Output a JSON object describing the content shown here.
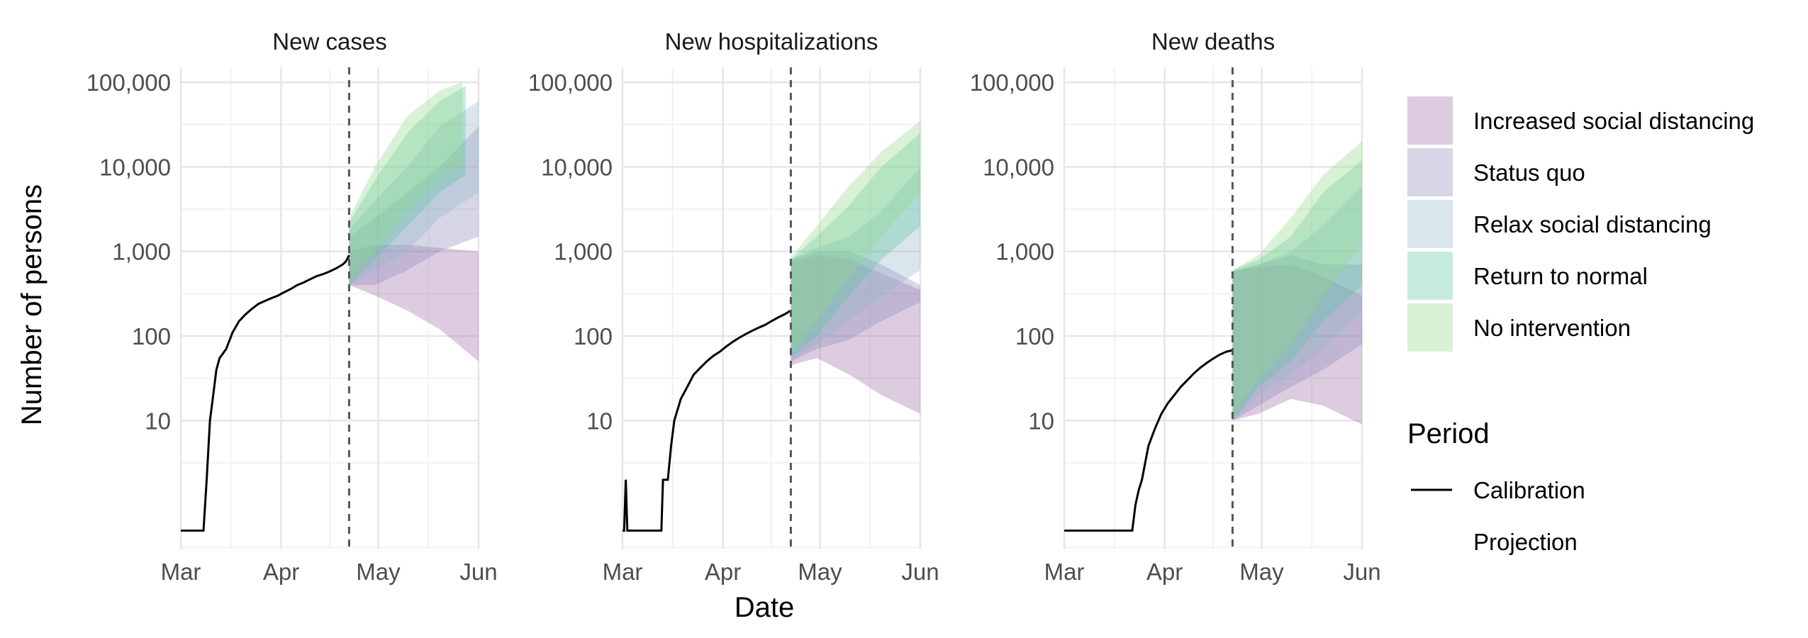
{
  "chart_data": {
    "type": "area",
    "x_axis_title": "Date",
    "y_axis_title": "Number of persons",
    "y_scale": "log10",
    "y_ticks": [
      {
        "value": 10,
        "label": "10"
      },
      {
        "value": 100,
        "label": "100"
      },
      {
        "value": 1000,
        "label": "1,000"
      },
      {
        "value": 10000,
        "label": "10,000"
      },
      {
        "value": 100000,
        "label": "100,000"
      }
    ],
    "ylim": [
      0.3,
      150000
    ],
    "x_ticks": [
      {
        "day": 0,
        "label": "Mar"
      },
      {
        "day": 31,
        "label": "Apr"
      },
      {
        "day": 61,
        "label": "May"
      },
      {
        "day": 92,
        "label": "Jun"
      }
    ],
    "xlim_days_from_mar1": [
      0,
      92
    ],
    "projection_start_day": 52,
    "grid": true,
    "legend": {
      "scenario_title": "",
      "scenarios": [
        {
          "label": "Increased social distancing",
          "color": "#9e6ea6"
        },
        {
          "label": "Status quo",
          "color": "#8a89b8"
        },
        {
          "label": "Relax social distancing",
          "color": "#93b7c8"
        },
        {
          "label": "Return to normal",
          "color": "#5fc4a4"
        },
        {
          "label": "No intervention",
          "color": "#93d98a"
        }
      ],
      "period_title": "Period",
      "periods": [
        {
          "label": "Calibration",
          "style": "solid"
        },
        {
          "label": "Projection",
          "style": "none"
        }
      ],
      "placement": "right"
    },
    "panels": [
      {
        "title": "New cases",
        "calibration": [
          [
            0,
            0.5
          ],
          [
            7,
            0.5
          ],
          [
            8,
            2
          ],
          [
            9,
            10
          ],
          [
            10,
            20
          ],
          [
            11,
            40
          ],
          [
            12,
            55
          ],
          [
            14,
            70
          ],
          [
            16,
            110
          ],
          [
            18,
            150
          ],
          [
            20,
            180
          ],
          [
            22,
            210
          ],
          [
            24,
            240
          ],
          [
            26,
            260
          ],
          [
            28,
            280
          ],
          [
            30,
            300
          ],
          [
            32,
            330
          ],
          [
            34,
            360
          ],
          [
            36,
            400
          ],
          [
            38,
            430
          ],
          [
            40,
            470
          ],
          [
            42,
            510
          ],
          [
            44,
            540
          ],
          [
            46,
            580
          ],
          [
            48,
            630
          ],
          [
            50,
            700
          ],
          [
            51,
            760
          ],
          [
            52,
            900
          ]
        ],
        "bands": [
          {
            "scenario": "Increased social distancing",
            "points": [
              [
                52,
                400,
                1000
              ],
              [
                60,
                300,
                1200
              ],
              [
                70,
                200,
                1200
              ],
              [
                80,
                120,
                1100
              ],
              [
                92,
                50,
                1000
              ]
            ]
          },
          {
            "scenario": "Status quo",
            "points": [
              [
                52,
                400,
                1500
              ],
              [
                60,
                400,
                2500
              ],
              [
                70,
                600,
                5000
              ],
              [
                80,
                1000,
                10000
              ],
              [
                92,
                1500,
                30000
              ]
            ]
          },
          {
            "scenario": "Relax social distancing",
            "points": [
              [
                52,
                400,
                1800
              ],
              [
                60,
                600,
                4000
              ],
              [
                70,
                1000,
                10000
              ],
              [
                80,
                2500,
                30000
              ],
              [
                92,
                5000,
                60000
              ]
            ]
          },
          {
            "scenario": "Return to normal",
            "points": [
              [
                52,
                400,
                2200
              ],
              [
                60,
                800,
                7000
              ],
              [
                70,
                2000,
                25000
              ],
              [
                80,
                5000,
                60000
              ],
              [
                88,
                8000,
                90000
              ]
            ]
          },
          {
            "scenario": "No intervention",
            "points": [
              [
                52,
                450,
                2500
              ],
              [
                60,
                1000,
                10000
              ],
              [
                70,
                3000,
                40000
              ],
              [
                80,
                8000,
                80000
              ],
              [
                87,
                10000,
                100000
              ]
            ]
          }
        ]
      },
      {
        "title": "New hospitalizations",
        "calibration": [
          [
            0,
            0.5
          ],
          [
            0.5,
            0.5
          ],
          [
            1,
            2
          ],
          [
            1.5,
            0.5
          ],
          [
            12,
            0.5
          ],
          [
            12.5,
            2
          ],
          [
            14,
            2
          ],
          [
            15,
            5
          ],
          [
            16,
            10
          ],
          [
            18,
            18
          ],
          [
            20,
            25
          ],
          [
            22,
            35
          ],
          [
            24,
            42
          ],
          [
            26,
            50
          ],
          [
            28,
            58
          ],
          [
            30,
            65
          ],
          [
            32,
            75
          ],
          [
            34,
            85
          ],
          [
            36,
            95
          ],
          [
            38,
            105
          ],
          [
            40,
            115
          ],
          [
            42,
            125
          ],
          [
            44,
            135
          ],
          [
            46,
            150
          ],
          [
            48,
            165
          ],
          [
            50,
            180
          ],
          [
            52,
            200
          ]
        ],
        "bands": [
          {
            "scenario": "Increased social distancing",
            "points": [
              [
                52,
                45,
                750
              ],
              [
                60,
                55,
                900
              ],
              [
                70,
                35,
                800
              ],
              [
                80,
                20,
                550
              ],
              [
                92,
                12,
                350
              ]
            ]
          },
          {
            "scenario": "Status quo",
            "points": [
              [
                52,
                50,
                800
              ],
              [
                60,
                70,
                1000
              ],
              [
                70,
                90,
                1000
              ],
              [
                80,
                150,
                700
              ],
              [
                92,
                250,
                400
              ]
            ]
          },
          {
            "scenario": "Relax social distancing",
            "points": [
              [
                52,
                50,
                800
              ],
              [
                60,
                80,
                1100
              ],
              [
                70,
                150,
                1500
              ],
              [
                80,
                300,
                3000
              ],
              [
                92,
                600,
                10000
              ]
            ]
          },
          {
            "scenario": "Return to normal",
            "points": [
              [
                52,
                55,
                800
              ],
              [
                60,
                100,
                1500
              ],
              [
                70,
                300,
                3500
              ],
              [
                80,
                800,
                10000
              ],
              [
                92,
                2000,
                25000
              ]
            ]
          },
          {
            "scenario": "No intervention",
            "points": [
              [
                52,
                60,
                850
              ],
              [
                60,
                150,
                2000
              ],
              [
                70,
                500,
                6000
              ],
              [
                80,
                1500,
                15000
              ],
              [
                92,
                5000,
                35000
              ]
            ]
          }
        ]
      },
      {
        "title": "New deaths",
        "calibration": [
          [
            0,
            0.5
          ],
          [
            21,
            0.5
          ],
          [
            22,
            1
          ],
          [
            23,
            1.5
          ],
          [
            24,
            2
          ],
          [
            26,
            5
          ],
          [
            28,
            8
          ],
          [
            30,
            12
          ],
          [
            32,
            16
          ],
          [
            34,
            20
          ],
          [
            36,
            25
          ],
          [
            38,
            30
          ],
          [
            40,
            36
          ],
          [
            42,
            42
          ],
          [
            44,
            48
          ],
          [
            46,
            54
          ],
          [
            48,
            60
          ],
          [
            50,
            65
          ],
          [
            52,
            68
          ]
        ],
        "bands": [
          {
            "scenario": "Increased social distancing",
            "points": [
              [
                52,
                10,
                580
              ],
              [
                60,
                12,
                650
              ],
              [
                70,
                18,
                700
              ],
              [
                80,
                15,
                500
              ],
              [
                92,
                9,
                300
              ]
            ]
          },
          {
            "scenario": "Status quo",
            "points": [
              [
                52,
                10,
                580
              ],
              [
                60,
                15,
                700
              ],
              [
                70,
                25,
                900
              ],
              [
                80,
                40,
                700
              ],
              [
                92,
                80,
                700
              ]
            ]
          },
          {
            "scenario": "Relax social distancing",
            "points": [
              [
                52,
                10,
                580
              ],
              [
                60,
                20,
                700
              ],
              [
                70,
                35,
                1000
              ],
              [
                80,
                70,
                2000
              ],
              [
                92,
                200,
                6000
              ]
            ]
          },
          {
            "scenario": "Return to normal",
            "points": [
              [
                52,
                10,
                600
              ],
              [
                60,
                25,
                800
              ],
              [
                70,
                50,
                1500
              ],
              [
                80,
                150,
                5000
              ],
              [
                92,
                400,
                12000
              ]
            ]
          },
          {
            "scenario": "No intervention",
            "points": [
              [
                52,
                12,
                600
              ],
              [
                60,
                30,
                900
              ],
              [
                70,
                80,
                2500
              ],
              [
                80,
                300,
                8000
              ],
              [
                92,
                1200,
                20000
              ]
            ]
          }
        ]
      }
    ]
  }
}
